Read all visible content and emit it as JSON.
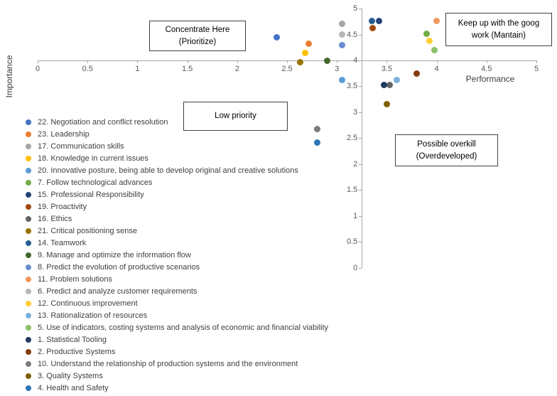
{
  "chart_data": {
    "type": "scatter",
    "title": "",
    "x_axis": {
      "label": "Performance",
      "min": 0,
      "max": 5,
      "tick_step": 0.5,
      "crosses_at_y": 4
    },
    "y_axis": {
      "label": "Importance",
      "min": 0,
      "max": 5,
      "tick_step": 0.5,
      "crosses_at_x": 3.25
    },
    "x_ticks": [
      "0",
      "0.5",
      "1",
      "1.5",
      "2",
      "2.5",
      "3",
      "3.5",
      "4",
      "4.5",
      "5"
    ],
    "y_ticks": [
      "5",
      "4.5",
      "4",
      "3.5",
      "3",
      "2.5",
      "2",
      "1.5",
      "1",
      "0.5",
      "0"
    ],
    "grid": false,
    "legend_position": "bottom-left",
    "background": "#ffffff",
    "series": [
      {
        "name": "22. Negotiation and conflict resolution",
        "color": "#4472C4",
        "x": 2.4,
        "y": 4.45
      },
      {
        "name": "23. Leadership",
        "color": "#ED7D31",
        "x": 2.72,
        "y": 4.32
      },
      {
        "name": "17. Communication skills",
        "color": "#A5A5A5",
        "x": 3.05,
        "y": 4.7
      },
      {
        "name": "18. Knowledge in current issues",
        "color": "#FFC000",
        "x": 2.68,
        "y": 4.14
      },
      {
        "name": "20. Innovative posture, being able to develop original and creative solutions",
        "color": "#5B9BD5",
        "x": 3.05,
        "y": 3.62
      },
      {
        "name": "7. Follow technological advances",
        "color": "#70AD47",
        "x": 3.9,
        "y": 4.52
      },
      {
        "name": "15. Professional Responsibility",
        "color": "#264478",
        "x": 3.42,
        "y": 4.76
      },
      {
        "name": "19. Proactivity",
        "color": "#9E480E",
        "x": 3.36,
        "y": 4.63
      },
      {
        "name": "16. Ethics",
        "color": "#636363",
        "x": 3.53,
        "y": 3.53
      },
      {
        "name": "21. Critical positioning sense",
        "color": "#997300",
        "x": 2.63,
        "y": 3.96
      },
      {
        "name": "14. Teamwork",
        "color": "#255E91",
        "x": 3.35,
        "y": 4.76
      },
      {
        "name": "9. Manage and optimize the information flow",
        "color": "#43682B",
        "x": 2.9,
        "y": 4.0
      },
      {
        "name": "8. Predict the evolution of productive scenarios",
        "color": "#698ED0",
        "x": 3.05,
        "y": 4.3
      },
      {
        "name": "11. Problem solutions",
        "color": "#F1975A",
        "x": 4.0,
        "y": 4.76
      },
      {
        "name": "6. Predict and analyze customer requirements",
        "color": "#B7B7B7",
        "x": 3.05,
        "y": 4.5
      },
      {
        "name": "12. Continuous improvement",
        "color": "#FFCD33",
        "x": 3.93,
        "y": 4.38
      },
      {
        "name": "13. Rationalization of resources",
        "color": "#7CAFDD",
        "x": 3.6,
        "y": 3.62
      },
      {
        "name": "5. Use of indicators, costing systems and analysis of economic and financial viability",
        "color": "#8CC168",
        "x": 3.98,
        "y": 4.2
      },
      {
        "name": "1. Statistical Tooling",
        "color": "#203864",
        "x": 3.47,
        "y": 3.53
      },
      {
        "name": "2. Productive Systems",
        "color": "#843C0C",
        "x": 3.8,
        "y": 3.74
      },
      {
        "name": "10. Understand the relationship of production systems and the environment",
        "color": "#7B7B7B",
        "x": 2.8,
        "y": 2.67
      },
      {
        "name": "3. Quality Systems",
        "color": "#7F6000",
        "x": 3.5,
        "y": 3.16
      },
      {
        "name": "4. Health and Safety",
        "color": "#2E75B6",
        "x": 2.8,
        "y": 2.42
      }
    ]
  },
  "quadrants": {
    "concentrate": {
      "line1": "Concentrate Here",
      "line2": "(Prioritize)"
    },
    "keep_up": {
      "line1": "Keep up with the goog",
      "line2": "work (Mantain)"
    },
    "low_priority": {
      "line1": "Low priority"
    },
    "overkill": {
      "line1": "Possible overkill",
      "line2": "(Overdeveloped)"
    }
  }
}
